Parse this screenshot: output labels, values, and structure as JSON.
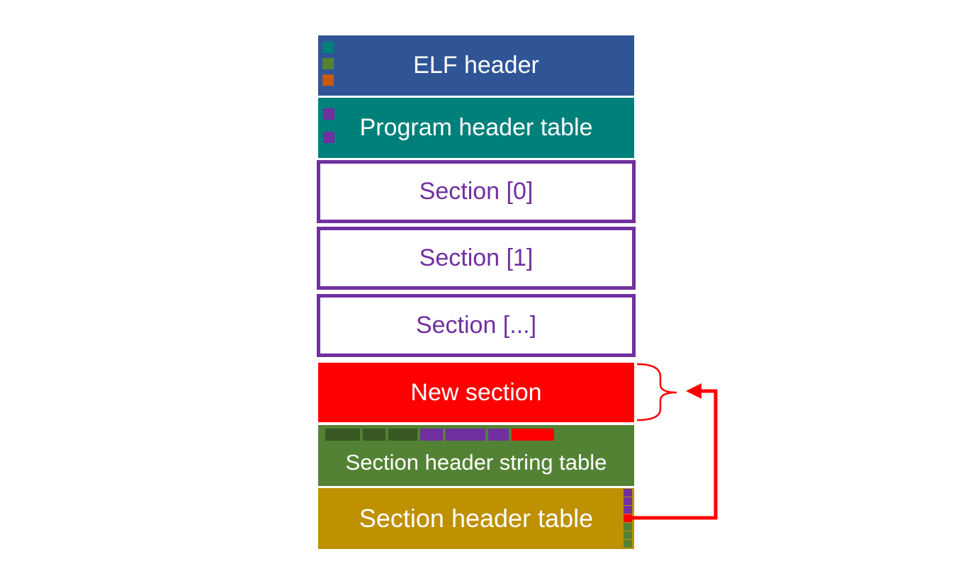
{
  "blocks": {
    "elf_header": "ELF header",
    "program_header_table": "Program header table",
    "section_0": "Section [0]",
    "section_1": "Section [1]",
    "section_n": "Section [...]",
    "new_section": "New section",
    "section_header_string_table": "Section header string table",
    "section_header_table": "Section header table"
  },
  "colors": {
    "elf_header": "#2f5597",
    "program_header_table": "#00807a",
    "section_outline": "#7030a0",
    "new_section": "#ff0000",
    "section_header_string_table": "#548235",
    "section_header_table": "#bf9000",
    "dark_green_entry": "#385723",
    "orange_entry": "#c55a11",
    "arrow": "#ff0000"
  }
}
